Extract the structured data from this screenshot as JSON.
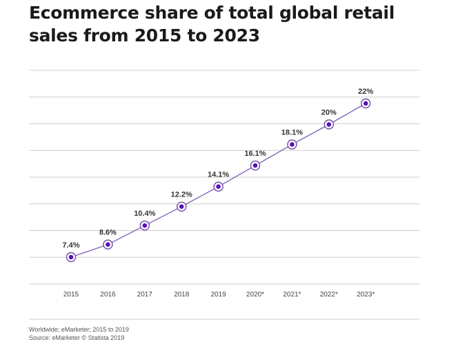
{
  "title_line1": "Ecommerce share of total global retail",
  "title_line2": "sales from 2015 to 2023",
  "chart_data": {
    "type": "line",
    "categories": [
      "2015",
      "2016",
      "2017",
      "2018",
      "2019",
      "2020*",
      "2021*",
      "2022*",
      "2023*"
    ],
    "series": [
      {
        "values": [
          7.4,
          8.6,
          10.4,
          12.2,
          14.1,
          16.1,
          18.1,
          20,
          22
        ],
        "labels": [
          "7.4%",
          "8.6%",
          "10.4%",
          "12.2%",
          "14.1%",
          "16.1%",
          "18.1%",
          "20%",
          "22%"
        ]
      }
    ],
    "ylim": [
      6,
      23
    ],
    "grid": true,
    "y_tick_labels": false,
    "colors": {
      "line": "#7b5cb8",
      "marker_fill": "#5b0fb8",
      "marker_ring": "#6c4aa8",
      "grid": "#cfcfcf"
    }
  },
  "footnote": "Worldwide; eMarketer; 2015 to 2019",
  "source": "Source: eMarketer © Statista 2019"
}
